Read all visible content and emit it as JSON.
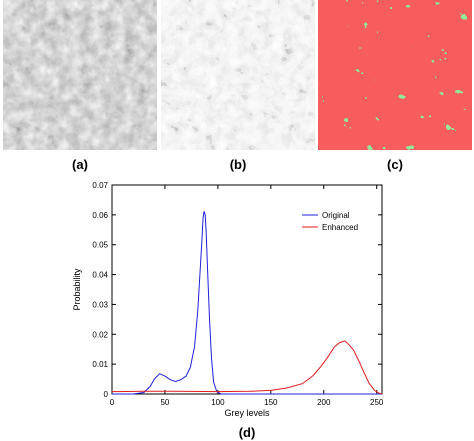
{
  "panels": [
    {
      "label": "(a)",
      "image": "grayscale-micrograph-original"
    },
    {
      "label": "(b)",
      "image": "grayscale-micrograph-enhanced"
    },
    {
      "label": "(c)",
      "image": "segmented-phase-map"
    }
  ],
  "colors": {
    "phase_red": "#ee1c1c",
    "phase_blue": "#1a1ad8",
    "phase_green": "#4ed24e",
    "original": "#1f1fdc",
    "enhanced": "#e01b1b"
  },
  "chart_data": {
    "type": "line",
    "panel_label": "(d)",
    "title": "",
    "xlabel": "Grey levels",
    "ylabel": "Probability",
    "xlim": [
      0,
      255
    ],
    "ylim": [
      0,
      0.07
    ],
    "xticks": [
      0,
      50,
      100,
      150,
      200,
      250
    ],
    "yticks": [
      0,
      0.01,
      0.02,
      0.03,
      0.04,
      0.05,
      0.06,
      0.07
    ],
    "legend": "top-right",
    "series": [
      {
        "name": "Original",
        "color": "#1f1fdc",
        "points": [
          [
            0,
            0
          ],
          [
            20,
            0
          ],
          [
            30,
            0.0005
          ],
          [
            36,
            0.0025
          ],
          [
            40,
            0.005
          ],
          [
            45,
            0.0068
          ],
          [
            50,
            0.006
          ],
          [
            55,
            0.0048
          ],
          [
            60,
            0.0042
          ],
          [
            65,
            0.0048
          ],
          [
            70,
            0.006
          ],
          [
            74,
            0.009
          ],
          [
            78,
            0.016
          ],
          [
            81,
            0.028
          ],
          [
            83,
            0.04
          ],
          [
            85,
            0.052
          ],
          [
            86,
            0.059
          ],
          [
            87,
            0.0612
          ],
          [
            88,
            0.06
          ],
          [
            89,
            0.054
          ],
          [
            90,
            0.044
          ],
          [
            92,
            0.026
          ],
          [
            94,
            0.012
          ],
          [
            96,
            0.004
          ],
          [
            99,
            0.0008
          ],
          [
            103,
            0
          ],
          [
            255,
            0
          ]
        ]
      },
      {
        "name": "Enhanced",
        "color": "#e01b1b",
        "points": [
          [
            0,
            0.0008
          ],
          [
            30,
            0.0009
          ],
          [
            60,
            0.0009
          ],
          [
            100,
            0.0008
          ],
          [
            130,
            0.0009
          ],
          [
            150,
            0.0012
          ],
          [
            165,
            0.002
          ],
          [
            180,
            0.0035
          ],
          [
            190,
            0.0062
          ],
          [
            198,
            0.0095
          ],
          [
            205,
            0.013
          ],
          [
            210,
            0.0158
          ],
          [
            215,
            0.0172
          ],
          [
            220,
            0.0178
          ],
          [
            223,
            0.0168
          ],
          [
            228,
            0.0148
          ],
          [
            233,
            0.0112
          ],
          [
            238,
            0.0072
          ],
          [
            243,
            0.0035
          ],
          [
            248,
            0.0012
          ],
          [
            252,
            0.0003
          ],
          [
            255,
            0
          ]
        ]
      }
    ]
  }
}
